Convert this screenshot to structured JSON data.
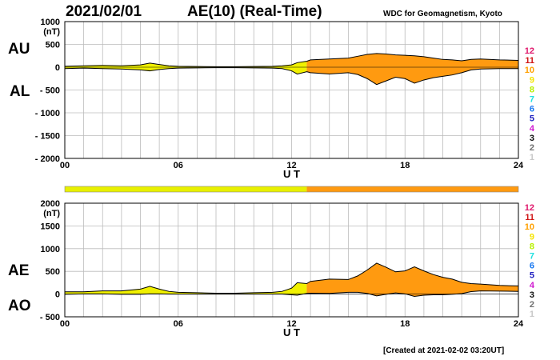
{
  "header": {
    "date": "2021/02/01",
    "title": "AE(10) (Real-Time)",
    "source": "WDC for Geomagnetism, Kyoto"
  },
  "footer": {
    "created": "[Created at 2021-02-02 03:20UT]"
  },
  "legend": {
    "items": [
      {
        "label": "12",
        "color": "#e0186c"
      },
      {
        "label": "11",
        "color": "#d01818"
      },
      {
        "label": "10",
        "color": "#ffa000"
      },
      {
        "label": "9",
        "color": "#f5e400"
      },
      {
        "label": "8",
        "color": "#b8f000"
      },
      {
        "label": "7",
        "color": "#20e0e0"
      },
      {
        "label": "6",
        "color": "#1878f0"
      },
      {
        "label": "5",
        "color": "#2020c0"
      },
      {
        "label": "4",
        "color": "#d018d0"
      },
      {
        "label": "3",
        "color": "#101010"
      },
      {
        "label": "2",
        "color": "#707070"
      },
      {
        "label": "1",
        "color": "#c8c8c8"
      }
    ]
  },
  "chart_data": [
    {
      "type": "area",
      "series": [
        {
          "name": "AU"
        },
        {
          "name": "AL"
        }
      ],
      "unit": "(nT)",
      "ylim": [
        -2000,
        1000
      ],
      "yticks": [
        "1000",
        "500",
        "0",
        "- 500",
        "- 1000",
        "- 1500",
        "- 2000"
      ],
      "xlim": [
        0,
        24
      ],
      "xticks": [
        "00",
        "06",
        "12",
        "18",
        "24"
      ],
      "xlabel": "U T",
      "grid": true,
      "x": [
        0,
        1,
        2,
        3,
        4,
        4.5,
        5,
        5.5,
        6,
        7,
        8,
        9,
        10,
        11,
        11.5,
        12,
        12.3,
        12.8,
        13,
        14,
        15,
        15.5,
        16,
        16.5,
        17,
        17.5,
        18,
        18.5,
        19,
        19.5,
        20,
        20.5,
        21,
        21.5,
        22,
        23,
        24
      ],
      "au": [
        20,
        30,
        40,
        30,
        50,
        90,
        60,
        30,
        20,
        15,
        10,
        10,
        15,
        20,
        30,
        50,
        100,
        130,
        160,
        180,
        200,
        240,
        280,
        300,
        290,
        270,
        260,
        250,
        230,
        200,
        170,
        160,
        140,
        170,
        180,
        160,
        150
      ],
      "al": [
        -30,
        -20,
        -30,
        -40,
        -60,
        -80,
        -50,
        -30,
        -20,
        -15,
        -10,
        -10,
        -15,
        -20,
        -30,
        -80,
        -150,
        -100,
        -120,
        -150,
        -120,
        -160,
        -250,
        -380,
        -300,
        -220,
        -250,
        -350,
        -280,
        -230,
        -200,
        -170,
        -120,
        -60,
        -40,
        -30,
        -30
      ]
    },
    {
      "type": "area",
      "series": [
        {
          "name": "AE"
        },
        {
          "name": "AO"
        }
      ],
      "unit": "(nT)",
      "ylim": [
        -500,
        2000
      ],
      "yticks": [
        "2000",
        "1500",
        "1000",
        "500",
        "0",
        "- 500"
      ],
      "xlim": [
        0,
        24
      ],
      "xticks": [
        "00",
        "06",
        "12",
        "18",
        "24"
      ],
      "xlabel": "U T",
      "grid": true,
      "x": [
        0,
        1,
        2,
        3,
        4,
        4.5,
        5,
        5.5,
        6,
        7,
        8,
        9,
        10,
        11,
        11.5,
        12,
        12.3,
        12.8,
        13,
        14,
        15,
        15.5,
        16,
        16.5,
        17,
        17.5,
        18,
        18.5,
        19,
        19.5,
        20,
        20.5,
        21,
        21.5,
        22,
        23,
        24
      ],
      "ae": [
        50,
        50,
        70,
        70,
        110,
        170,
        110,
        60,
        40,
        30,
        20,
        20,
        30,
        40,
        60,
        130,
        250,
        230,
        280,
        330,
        320,
        400,
        530,
        680,
        590,
        490,
        510,
        600,
        510,
        430,
        370,
        330,
        260,
        230,
        220,
        190,
        180
      ],
      "ao": [
        -5,
        5,
        5,
        -5,
        -5,
        5,
        5,
        0,
        0,
        0,
        0,
        0,
        0,
        0,
        0,
        -15,
        -25,
        15,
        20,
        15,
        40,
        40,
        15,
        -40,
        -5,
        25,
        5,
        -50,
        -25,
        -15,
        -15,
        -5,
        10,
        55,
        70,
        65,
        60
      ]
    }
  ],
  "activity_bar": {
    "segments": [
      {
        "from": 0,
        "to": 12.8,
        "level": "9"
      },
      {
        "from": 12.8,
        "to": 24,
        "level": "10"
      }
    ]
  },
  "panel_labels": {
    "au": "AU",
    "al": "AL",
    "ae": "AE",
    "ao": "AO"
  }
}
